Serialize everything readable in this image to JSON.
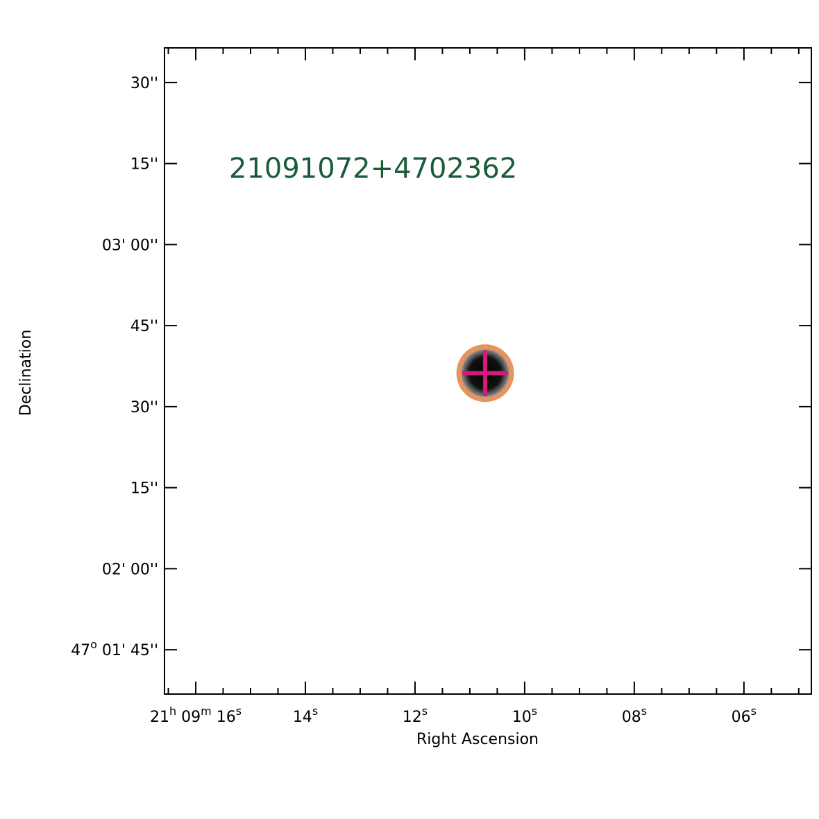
{
  "chart_data": {
    "type": "finder",
    "xlabel": "Right Ascension",
    "ylabel": "Declination",
    "xlim": [
      16.57,
      4.77
    ],
    "ylim": [
      96.8,
      216.4
    ],
    "xticks": [
      {
        "value": 16,
        "label": [
          "21",
          "h",
          " 09",
          "m",
          " 16",
          "s"
        ]
      },
      {
        "value": 14,
        "label": [
          "14",
          "s"
        ]
      },
      {
        "value": 12,
        "label": [
          "12",
          "s"
        ]
      },
      {
        "value": 10,
        "label": [
          "10",
          "s"
        ]
      },
      {
        "value": 8,
        "label": [
          "08",
          "s"
        ]
      },
      {
        "value": 6,
        "label": [
          "06",
          "s"
        ]
      }
    ],
    "xminorticks": [
      16.5,
      15.5,
      15,
      14.5,
      13.5,
      13,
      12.5,
      11.5,
      11,
      10.5,
      9.5,
      9,
      8.5,
      7.5,
      7,
      6.5,
      5.5,
      5
    ],
    "yticks": [
      {
        "value": 210,
        "label": [
          "30''"
        ]
      },
      {
        "value": 195,
        "label": [
          "15''"
        ]
      },
      {
        "value": 180,
        "label": [
          "03' 00''"
        ]
      },
      {
        "value": 165,
        "label": [
          "45''"
        ]
      },
      {
        "value": 150,
        "label": [
          "30''"
        ]
      },
      {
        "value": 135,
        "label": [
          "15''"
        ]
      },
      {
        "value": 120,
        "label": [
          "02' 00''"
        ]
      },
      {
        "value": 105,
        "label": [
          "47",
          "o",
          " 01' 45''"
        ]
      }
    ],
    "source": {
      "label": "21091072+4702362",
      "x": 10.72,
      "y": 156.2,
      "circle_color": "#e8935e",
      "cross_color": "#d6197a"
    }
  }
}
